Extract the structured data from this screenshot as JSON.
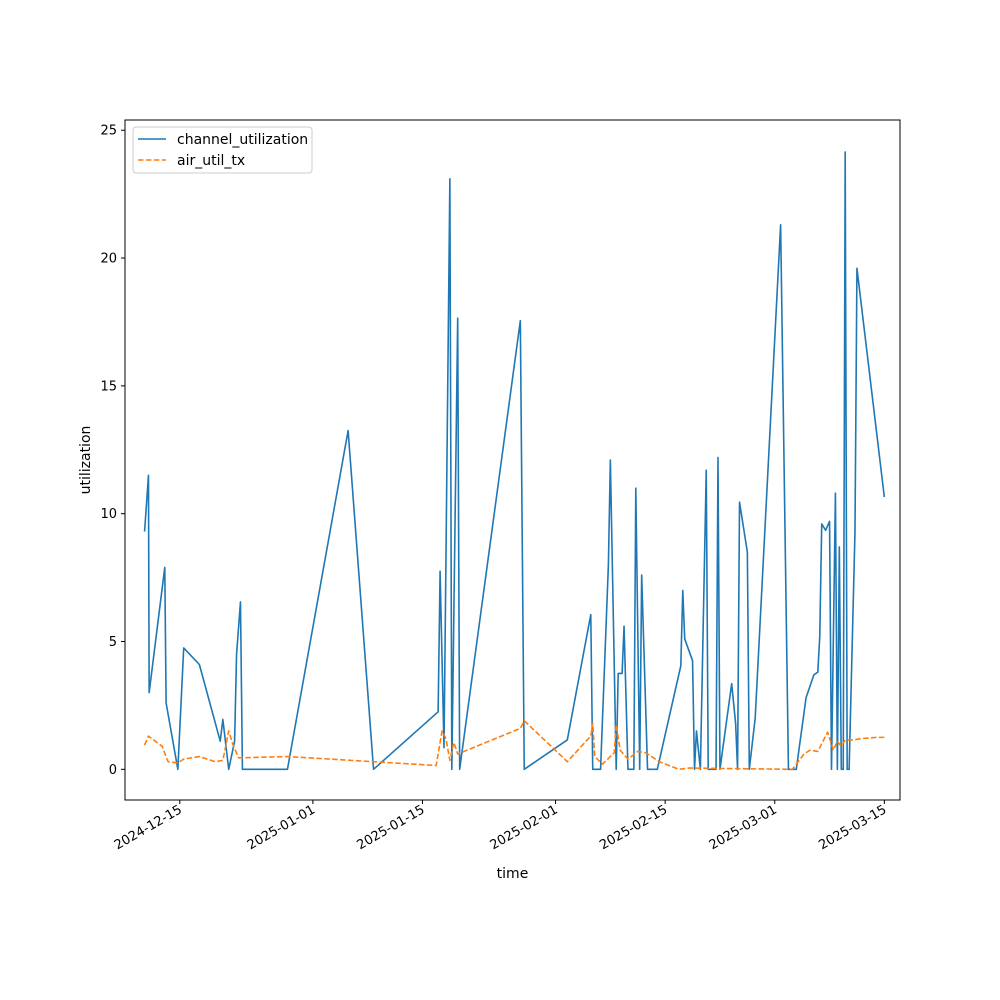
{
  "chart_data": {
    "type": "line",
    "xlabel": "time",
    "ylabel": "utilization",
    "x_axis_type": "date",
    "xlim": [
      "2024-12-08",
      "2025-03-17"
    ],
    "ylim": [
      -1.2,
      25.4
    ],
    "x_ticks": [
      "2024-12-15",
      "2025-01-01",
      "2025-01-15",
      "2025-02-01",
      "2025-02-15",
      "2025-03-01",
      "2025-03-15"
    ],
    "y_ticks": [
      0,
      5,
      10,
      15,
      20,
      25
    ],
    "grid": false,
    "legend_position": "top-left",
    "series": [
      {
        "name": "channel_utilization",
        "color": "#1f77b4",
        "style": "solid",
        "points": [
          [
            "2024-12-10T12:00",
            9.3
          ],
          [
            "2024-12-11T00:00",
            11.5
          ],
          [
            "2024-12-11T02:00",
            3.0
          ],
          [
            "2024-12-13T02:00",
            7.9
          ],
          [
            "2024-12-13T06:00",
            2.6
          ],
          [
            "2024-12-14T18:00",
            0.0
          ],
          [
            "2024-12-15T12:00",
            4.75
          ],
          [
            "2024-12-17T12:00",
            4.1
          ],
          [
            "2024-12-20T04:00",
            1.1
          ],
          [
            "2024-12-20T12:00",
            1.95
          ],
          [
            "2024-12-21T06:00",
            0.0
          ],
          [
            "2024-12-22T00:00",
            1.1
          ],
          [
            "2024-12-22T06:00",
            4.5
          ],
          [
            "2024-12-22T18:00",
            6.55
          ],
          [
            "2024-12-23T00:00",
            0.0
          ],
          [
            "2024-12-28T18:00",
            0.0
          ],
          [
            "2025-01-05T12:00",
            13.25
          ],
          [
            "2025-01-08T18:00",
            0.0
          ],
          [
            "2025-01-17T00:00",
            2.25
          ],
          [
            "2025-01-17T06:00",
            7.75
          ],
          [
            "2025-01-17T18:00",
            0.85
          ],
          [
            "2025-01-18T12:00",
            23.1
          ],
          [
            "2025-01-18T18:00",
            0.0
          ],
          [
            "2025-01-19T12:00",
            17.65
          ],
          [
            "2025-01-19T18:00",
            0.0
          ],
          [
            "2025-01-27T12:00",
            17.55
          ],
          [
            "2025-01-28T00:00",
            0.0
          ],
          [
            "2025-02-02T12:00",
            1.15
          ],
          [
            "2025-02-05T12:00",
            6.05
          ],
          [
            "2025-02-05T18:00",
            0.0
          ],
          [
            "2025-02-06T18:00",
            0.0
          ],
          [
            "2025-02-07T18:00",
            8.0
          ],
          [
            "2025-02-08T00:00",
            12.1
          ],
          [
            "2025-02-08T18:00",
            0.0
          ],
          [
            "2025-02-09T00:00",
            3.75
          ],
          [
            "2025-02-09T12:00",
            3.75
          ],
          [
            "2025-02-09T18:00",
            5.6
          ],
          [
            "2025-02-10T06:00",
            0.0
          ],
          [
            "2025-02-11T00:00",
            0.0
          ],
          [
            "2025-02-11T06:00",
            11.0
          ],
          [
            "2025-02-11T18:00",
            0.0
          ],
          [
            "2025-02-12T00:00",
            7.6
          ],
          [
            "2025-02-12T18:00",
            0.0
          ],
          [
            "2025-02-14T00:00",
            0.0
          ],
          [
            "2025-02-17T00:00",
            4.05
          ],
          [
            "2025-02-17T06:00",
            7.0
          ],
          [
            "2025-02-17T12:00",
            5.1
          ],
          [
            "2025-02-18T12:00",
            4.25
          ],
          [
            "2025-02-18T18:00",
            0.0
          ],
          [
            "2025-02-19T00:00",
            1.5
          ],
          [
            "2025-02-19T12:00",
            0.0
          ],
          [
            "2025-02-20T06:00",
            11.7
          ],
          [
            "2025-02-20T12:00",
            0.0
          ],
          [
            "2025-02-21T12:00",
            0.0
          ],
          [
            "2025-02-21T18:00",
            12.2
          ],
          [
            "2025-02-22T00:00",
            0.0
          ],
          [
            "2025-02-23T12:00",
            3.35
          ],
          [
            "2025-02-24T00:00",
            1.8
          ],
          [
            "2025-02-24T06:00",
            0.0
          ],
          [
            "2025-02-24T12:00",
            10.45
          ],
          [
            "2025-02-25T12:00",
            8.5
          ],
          [
            "2025-02-25T18:00",
            0.0
          ],
          [
            "2025-02-26T12:00",
            2.0
          ],
          [
            "2025-03-01T18:00",
            21.3
          ],
          [
            "2025-03-02T18:00",
            0.0
          ],
          [
            "2025-03-03T18:00",
            0.0
          ],
          [
            "2025-03-05T00:00",
            2.8
          ],
          [
            "2025-03-06T00:00",
            3.7
          ],
          [
            "2025-03-06T12:00",
            3.8
          ],
          [
            "2025-03-06T18:00",
            5.2
          ],
          [
            "2025-03-07T00:00",
            9.6
          ],
          [
            "2025-03-07T12:00",
            9.35
          ],
          [
            "2025-03-08T00:00",
            9.7
          ],
          [
            "2025-03-08T06:00",
            0.0
          ],
          [
            "2025-03-08T18:00",
            10.8
          ],
          [
            "2025-03-09T00:00",
            0.0
          ],
          [
            "2025-03-09T06:00",
            8.7
          ],
          [
            "2025-03-09T12:00",
            0.0
          ],
          [
            "2025-03-09T18:00",
            0.0
          ],
          [
            "2025-03-10T00:00",
            24.15
          ],
          [
            "2025-03-10T06:00",
            0.0
          ],
          [
            "2025-03-10T12:00",
            0.0
          ],
          [
            "2025-03-11T06:00",
            9.3
          ],
          [
            "2025-03-11T12:00",
            19.6
          ],
          [
            "2025-03-15T00:00",
            10.65
          ]
        ]
      },
      {
        "name": "air_util_tx",
        "color": "#ff7f0e",
        "style": "dashed",
        "points": [
          [
            "2024-12-10T12:00",
            0.95
          ],
          [
            "2024-12-11T00:00",
            1.3
          ],
          [
            "2024-12-12T18:00",
            0.9
          ],
          [
            "2024-12-13T12:00",
            0.3
          ],
          [
            "2024-12-14T18:00",
            0.25
          ],
          [
            "2024-12-15T12:00",
            0.4
          ],
          [
            "2024-12-17T12:00",
            0.5
          ],
          [
            "2024-12-19T12:00",
            0.3
          ],
          [
            "2024-12-20T12:00",
            0.35
          ],
          [
            "2024-12-21T06:00",
            1.5
          ],
          [
            "2024-12-21T18:00",
            1.0
          ],
          [
            "2024-12-22T12:00",
            0.45
          ],
          [
            "2024-12-28T18:00",
            0.5
          ],
          [
            "2025-01-16T18:00",
            0.15
          ],
          [
            "2025-01-17T12:00",
            1.5
          ],
          [
            "2025-01-18T00:00",
            1.2
          ],
          [
            "2025-01-18T12:00",
            0.35
          ],
          [
            "2025-01-19T00:00",
            1.05
          ],
          [
            "2025-01-19T12:00",
            0.6
          ],
          [
            "2025-01-27T12:00",
            1.6
          ],
          [
            "2025-01-28T00:00",
            1.9
          ],
          [
            "2025-02-02T12:00",
            0.3
          ],
          [
            "2025-02-05T12:00",
            1.3
          ],
          [
            "2025-02-05T18:00",
            1.8
          ],
          [
            "2025-02-06T00:00",
            0.5
          ],
          [
            "2025-02-07T00:00",
            0.2
          ],
          [
            "2025-02-08T12:00",
            0.65
          ],
          [
            "2025-02-08T18:00",
            1.75
          ],
          [
            "2025-02-09T06:00",
            0.75
          ],
          [
            "2025-02-10T06:00",
            0.4
          ],
          [
            "2025-02-11T12:00",
            0.7
          ],
          [
            "2025-02-12T12:00",
            0.65
          ],
          [
            "2025-02-14T06:00",
            0.3
          ],
          [
            "2025-02-16T18:00",
            0.0
          ],
          [
            "2025-02-18T00:00",
            0.05
          ],
          [
            "2025-03-03T06:00",
            0.0
          ],
          [
            "2025-03-04T18:00",
            0.6
          ],
          [
            "2025-03-05T12:00",
            0.75
          ],
          [
            "2025-03-06T12:00",
            0.7
          ],
          [
            "2025-03-07T18:00",
            1.45
          ],
          [
            "2025-03-08T12:00",
            0.75
          ],
          [
            "2025-03-09T00:00",
            1.1
          ],
          [
            "2025-03-09T12:00",
            0.9
          ],
          [
            "2025-03-10T00:00",
            1.15
          ],
          [
            "2025-03-11T00:00",
            1.15
          ],
          [
            "2025-03-12T00:00",
            1.2
          ],
          [
            "2025-03-14T00:00",
            1.25
          ],
          [
            "2025-03-15T00:00",
            1.25
          ]
        ]
      }
    ]
  }
}
